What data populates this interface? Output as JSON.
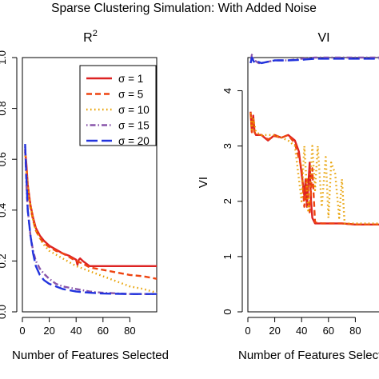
{
  "title": "Sparse Clustering Simulation: With Added Noise",
  "chart_data": [
    {
      "type": "line",
      "title": "R",
      "title_superscript": "2",
      "xlabel": "Number of Features Selected",
      "ylabel": "",
      "xlim": [
        0,
        100
      ],
      "ylim": [
        0.0,
        1.0
      ],
      "x_ticks": [
        0,
        20,
        40,
        60,
        80
      ],
      "y_ticks": [
        0.0,
        0.2,
        0.4,
        0.6,
        0.8,
        1.0
      ],
      "y_tick_labels": [
        "0.0",
        "0.2",
        "0.4",
        "0.6",
        "0.8",
        "1.0"
      ],
      "legend_position": "top-right",
      "grid": false,
      "series": [
        {
          "name": "σ = 1",
          "color": "#dd2222",
          "dash": "solid",
          "x": [
            2,
            3,
            4,
            6,
            8,
            10,
            13,
            16,
            20,
            25,
            30,
            35,
            40,
            41,
            42,
            43,
            45,
            50,
            60,
            80,
            100
          ],
          "y": [
            0.64,
            0.58,
            0.5,
            0.42,
            0.37,
            0.33,
            0.3,
            0.28,
            0.26,
            0.245,
            0.23,
            0.22,
            0.205,
            0.185,
            0.205,
            0.21,
            0.2,
            0.18,
            0.18,
            0.18,
            0.18
          ]
        },
        {
          "name": "σ = 5",
          "color": "#ee4411",
          "dash": "dashed",
          "x": [
            2,
            3,
            4,
            6,
            8,
            10,
            13,
            16,
            20,
            25,
            30,
            35,
            40,
            45,
            50,
            60,
            70,
            80,
            90,
            100
          ],
          "y": [
            0.63,
            0.57,
            0.49,
            0.41,
            0.36,
            0.32,
            0.29,
            0.27,
            0.255,
            0.24,
            0.23,
            0.215,
            0.2,
            0.19,
            0.175,
            0.165,
            0.155,
            0.145,
            0.14,
            0.13
          ]
        },
        {
          "name": "σ = 10",
          "color": "#e8a000",
          "dash": "dotted",
          "x": [
            2,
            3,
            5,
            8,
            10,
            15,
            20,
            30,
            40,
            50,
            60,
            70,
            80,
            90,
            100
          ],
          "y": [
            0.63,
            0.55,
            0.45,
            0.36,
            0.32,
            0.27,
            0.24,
            0.21,
            0.18,
            0.16,
            0.14,
            0.12,
            0.1,
            0.09,
            0.075
          ]
        },
        {
          "name": "σ = 15",
          "color": "#8855aa",
          "dash": "dotdash",
          "x": [
            2,
            3,
            4,
            6,
            8,
            10,
            13,
            16,
            20,
            25,
            30,
            40,
            50,
            60,
            80,
            100
          ],
          "y": [
            0.65,
            0.5,
            0.4,
            0.3,
            0.24,
            0.2,
            0.17,
            0.15,
            0.13,
            0.11,
            0.1,
            0.09,
            0.08,
            0.075,
            0.07,
            0.07
          ]
        },
        {
          "name": "σ = 20",
          "color": "#2233dd",
          "dash": "longdash",
          "x": [
            2,
            3,
            4,
            6,
            8,
            10,
            13,
            16,
            20,
            25,
            30,
            40,
            50,
            60,
            80,
            100
          ],
          "y": [
            0.66,
            0.53,
            0.4,
            0.3,
            0.23,
            0.18,
            0.145,
            0.125,
            0.11,
            0.1,
            0.09,
            0.08,
            0.075,
            0.072,
            0.07,
            0.07
          ]
        }
      ]
    },
    {
      "type": "line",
      "title": "VI",
      "xlabel": "Number of Features Selected",
      "ylabel": "VI",
      "xlim": [
        0,
        100
      ],
      "ylim": [
        0,
        4.6
      ],
      "x_ticks": [
        0,
        20,
        40,
        60,
        80
      ],
      "y_ticks": [
        0,
        1,
        2,
        3,
        4
      ],
      "grid": false,
      "series": [
        {
          "name": "σ = 1",
          "color": "#dd2222",
          "dash": "solid",
          "x": [
            2,
            3,
            4,
            5,
            6,
            8,
            10,
            15,
            20,
            25,
            30,
            35,
            38,
            40,
            42,
            43,
            44,
            45,
            46,
            47,
            48,
            50,
            55,
            60,
            70,
            80,
            100
          ],
          "y": [
            3.62,
            3.25,
            3.55,
            3.25,
            3.2,
            3.2,
            3.2,
            3.1,
            3.2,
            3.15,
            3.2,
            3.1,
            2.9,
            2.5,
            2.1,
            2.4,
            1.9,
            2.3,
            2.7,
            2.0,
            1.7,
            1.6,
            1.6,
            1.6,
            1.6,
            1.58,
            1.58
          ]
        },
        {
          "name": "σ = 5",
          "color": "#ee4411",
          "dash": "dashed",
          "x": [
            2,
            3,
            4,
            5,
            6,
            8,
            10,
            15,
            20,
            25,
            30,
            35,
            40,
            42,
            44,
            46,
            48,
            50,
            55,
            60,
            70,
            80,
            100
          ],
          "y": [
            3.6,
            3.25,
            3.5,
            3.25,
            3.2,
            3.2,
            3.2,
            3.12,
            3.18,
            3.15,
            3.2,
            3.05,
            2.6,
            1.9,
            2.4,
            1.8,
            2.6,
            1.62,
            1.6,
            1.6,
            1.6,
            1.58,
            1.58
          ]
        },
        {
          "name": "σ = 10",
          "color": "#e8a000",
          "dash": "dotted",
          "x": [
            2,
            3,
            4,
            6,
            10,
            20,
            30,
            35,
            40,
            42,
            45,
            48,
            50,
            52,
            55,
            58,
            60,
            62,
            65,
            68,
            70,
            72,
            75,
            80,
            100
          ],
          "y": [
            3.6,
            3.3,
            3.5,
            3.25,
            3.2,
            3.2,
            3.1,
            3.0,
            2.0,
            3.0,
            1.8,
            3.0,
            2.2,
            3.0,
            1.9,
            2.8,
            1.7,
            2.7,
            2.5,
            1.7,
            2.4,
            1.6,
            1.6,
            1.6,
            1.6
          ]
        },
        {
          "name": "σ = 15",
          "color": "#8855aa",
          "dash": "dotdash",
          "x": [
            2,
            3,
            5,
            8,
            10,
            20,
            30,
            40,
            50,
            60,
            80,
            100
          ],
          "y": [
            4.5,
            4.65,
            4.55,
            4.5,
            4.5,
            4.55,
            4.55,
            4.58,
            4.6,
            4.6,
            4.6,
            4.6
          ]
        },
        {
          "name": "σ = 20",
          "color": "#2233dd",
          "dash": "longdash",
          "x": [
            2,
            3,
            5,
            8,
            10,
            20,
            30,
            40,
            50,
            60,
            80,
            100
          ],
          "y": [
            4.5,
            4.6,
            4.5,
            4.52,
            4.5,
            4.55,
            4.55,
            4.56,
            4.58,
            4.58,
            4.58,
            4.58
          ]
        }
      ]
    }
  ]
}
